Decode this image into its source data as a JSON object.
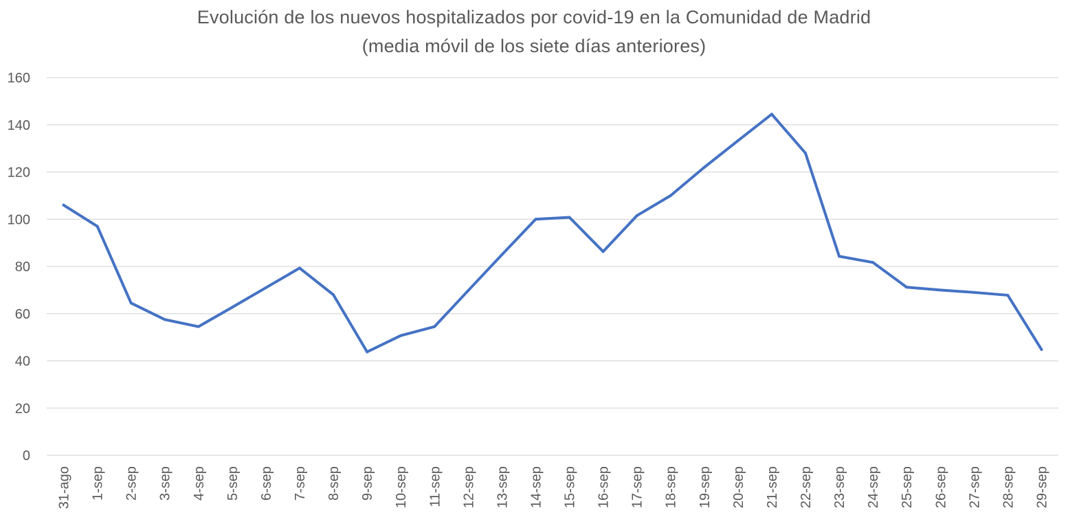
{
  "chart_data": {
    "type": "line",
    "title": "Evolución de los nuevos hospitalizados por covid-19 en la Comunidad de Madrid",
    "subtitle": "(media móvil de los siete días anteriores)",
    "xlabel": "",
    "ylabel": "",
    "ylim": [
      0,
      160
    ],
    "yticks": [
      0,
      20,
      40,
      60,
      80,
      100,
      120,
      140,
      160
    ],
    "grid": true,
    "categories": [
      "31-ago",
      "1-sep",
      "2-sep",
      "3-sep",
      "4-sep",
      "5-sep",
      "6-sep",
      "7-sep",
      "8-sep",
      "9-sep",
      "10-sep",
      "11-sep",
      "12-sep",
      "13-sep",
      "14-sep",
      "15-sep",
      "16-sep",
      "17-sep",
      "18-sep",
      "19-sep",
      "20-sep",
      "21-sep",
      "22-sep",
      "23-sep",
      "24-sep",
      "25-sep",
      "26-sep",
      "27-sep",
      "28-sep",
      "29-sep"
    ],
    "series": [
      {
        "color": "#4472c4",
        "values": [
          106,
          97,
          64.5,
          57.5,
          54.5,
          62.7,
          71,
          79.3,
          68,
          43.8,
          50.7,
          54.5,
          69.8,
          85,
          100,
          100.8,
          86.3,
          101.5,
          110,
          122,
          133.3,
          144.5,
          128,
          84.3,
          81.7,
          71.2,
          70,
          69,
          67.8,
          44.8
        ]
      }
    ]
  }
}
